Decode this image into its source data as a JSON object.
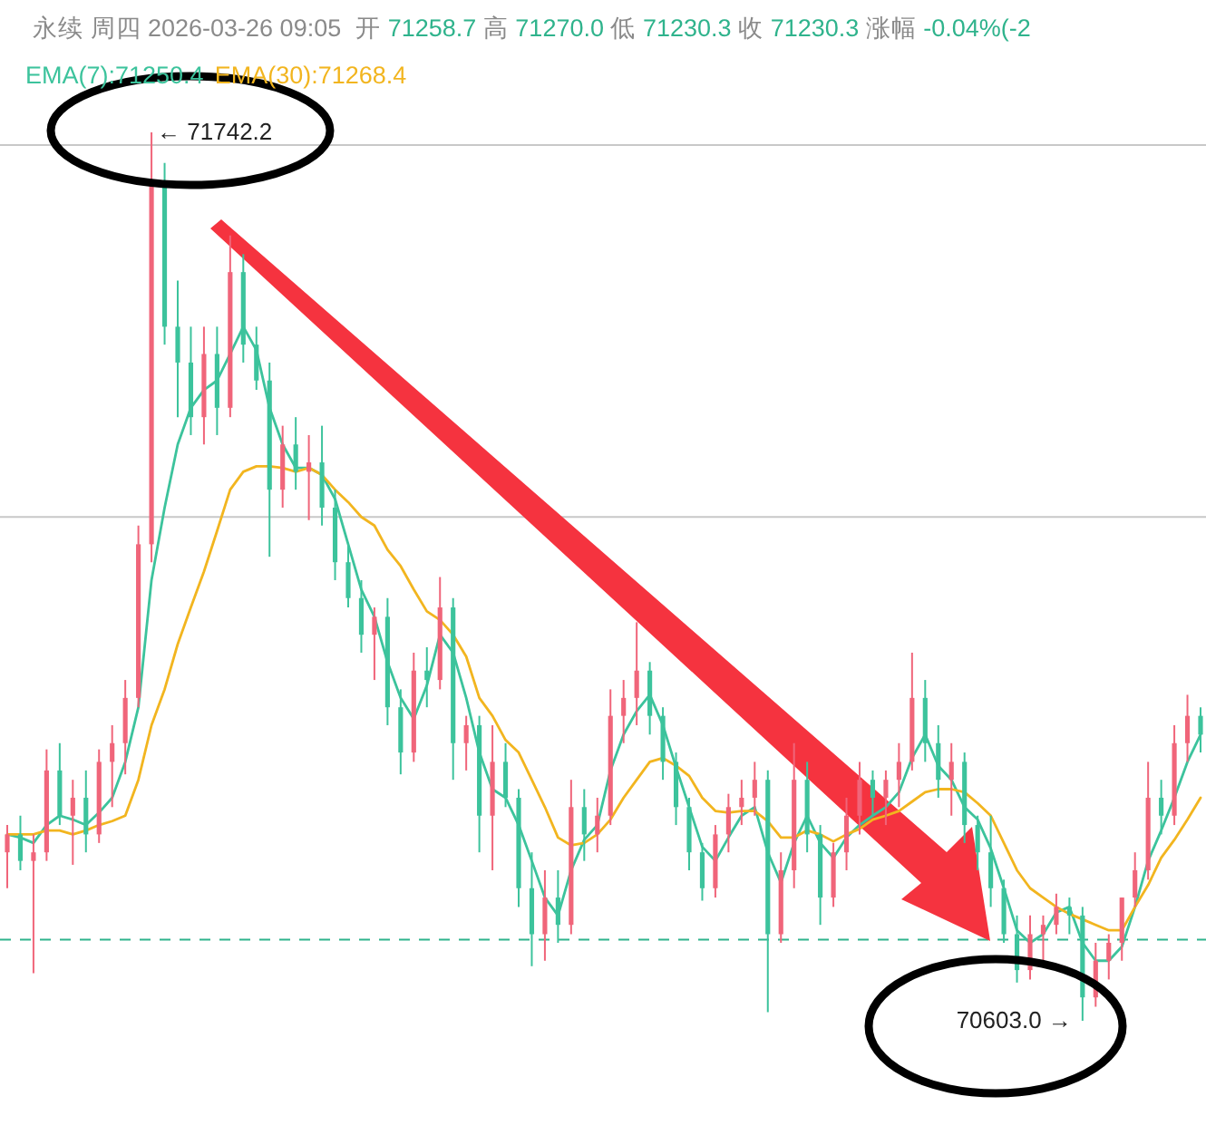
{
  "chart_data": {
    "type": "candlestick",
    "title": "永续 周四 2026-03-26 09:05",
    "subtitle": "开 71258.7 高 71270.0 低 71230.3 收 71230.3 涨幅 -0.04%(-2",
    "categories": [
      null,
      null,
      null,
      null,
      null,
      null,
      null,
      null,
      null,
      null,
      null,
      null,
      null,
      null,
      null,
      null,
      null,
      null,
      null,
      null,
      null,
      null,
      null,
      null,
      null,
      null,
      null,
      null,
      null,
      null,
      null,
      null,
      null,
      null,
      null,
      null,
      null,
      null,
      null,
      null,
      null,
      null,
      null,
      null,
      null,
      null,
      null,
      null,
      null,
      null,
      null,
      null,
      null,
      null,
      null,
      null,
      null,
      null,
      null,
      null,
      null,
      null,
      null,
      null,
      null,
      null,
      null,
      null,
      null,
      null,
      null,
      null,
      null,
      null,
      null,
      null,
      null,
      null,
      null,
      null,
      null,
      null,
      null,
      null,
      null,
      null,
      null,
      null,
      null,
      null,
      null,
      null
    ],
    "ohlc": [
      [
        70819,
        70854,
        70773,
        70842
      ],
      [
        70842,
        70866,
        70796,
        70808
      ],
      [
        70808,
        70842,
        70664,
        70819
      ],
      [
        70819,
        70951,
        70808,
        70924
      ],
      [
        70924,
        70959,
        70854,
        70866
      ],
      [
        70866,
        70912,
        70803,
        70889
      ],
      [
        70889,
        70924,
        70819,
        70842
      ],
      [
        70842,
        70951,
        70831,
        70935
      ],
      [
        70935,
        70982,
        70877,
        70959
      ],
      [
        70959,
        71040,
        70919,
        71017
      ],
      [
        71017,
        71238,
        71005,
        71214
      ],
      [
        71214,
        71742.2,
        71191,
        71679
      ],
      [
        71679,
        71703,
        71470,
        71493
      ],
      [
        71493,
        71552,
        71377,
        71447
      ],
      [
        71447,
        71493,
        71354,
        71377
      ],
      [
        71377,
        71493,
        71342,
        71458
      ],
      [
        71458,
        71493,
        71354,
        71389
      ],
      [
        71389,
        71610,
        71377,
        71563
      ],
      [
        71563,
        71586,
        71447,
        71470
      ],
      [
        71470,
        71493,
        71412,
        71424
      ],
      [
        71424,
        71447,
        71198,
        71284
      ],
      [
        71284,
        71366,
        71261,
        71342
      ],
      [
        71342,
        71377,
        71284,
        71307
      ],
      [
        71307,
        71354,
        71245,
        71319
      ],
      [
        71319,
        71366,
        71238,
        71261
      ],
      [
        71261,
        71284,
        71168,
        71191
      ],
      [
        71191,
        71214,
        71133,
        71145
      ],
      [
        71145,
        71168,
        71075,
        71098
      ],
      [
        71098,
        71133,
        71040,
        71121
      ],
      [
        71121,
        71145,
        70982,
        71005
      ],
      [
        71005,
        71028,
        70919,
        70947
      ],
      [
        70947,
        71075,
        70935,
        71052
      ],
      [
        71052,
        71082,
        71005,
        71040
      ],
      [
        71040,
        71172,
        71028,
        71133
      ],
      [
        71133,
        71145,
        70912,
        70959
      ],
      [
        70959,
        70994,
        70924,
        70982
      ],
      [
        70982,
        70994,
        70819,
        70866
      ],
      [
        70866,
        70982,
        70796,
        70935
      ],
      [
        70935,
        70959,
        70877,
        70889
      ],
      [
        70889,
        70900,
        70749,
        70773
      ],
      [
        70773,
        70819,
        70673,
        70714
      ],
      [
        70714,
        70796,
        70680,
        70761
      ],
      [
        70761,
        70796,
        70703,
        70726
      ],
      [
        70726,
        70912,
        70714,
        70877
      ],
      [
        70877,
        70900,
        70808,
        70842
      ],
      [
        70842,
        70889,
        70819,
        70866
      ],
      [
        70866,
        71028,
        70854,
        70994
      ],
      [
        70994,
        71040,
        70959,
        71017
      ],
      [
        71017,
        71114,
        70982,
        71052
      ],
      [
        71052,
        71063,
        70970,
        70994
      ],
      [
        70994,
        71005,
        70912,
        70935
      ],
      [
        70935,
        70947,
        70854,
        70877
      ],
      [
        70877,
        70889,
        70796,
        70819
      ],
      [
        70819,
        70831,
        70757,
        70773
      ],
      [
        70773,
        70854,
        70761,
        70842
      ],
      [
        70842,
        70894,
        70819,
        70877
      ],
      [
        70877,
        70912,
        70854,
        70889
      ],
      [
        70889,
        70935,
        70866,
        70912
      ],
      [
        70912,
        70924,
        70614,
        70714
      ],
      [
        70714,
        70819,
        70703,
        70796
      ],
      [
        70796,
        70959,
        70773,
        70912
      ],
      [
        70912,
        70935,
        70819,
        70842
      ],
      [
        70842,
        70854,
        70726,
        70761
      ],
      [
        70761,
        70831,
        70749,
        70819
      ],
      [
        70819,
        70889,
        70796,
        70866
      ],
      [
        70866,
        70935,
        70842,
        70912
      ],
      [
        70912,
        70924,
        70866,
        70889
      ],
      [
        70889,
        70924,
        70854,
        70912
      ],
      [
        70912,
        70959,
        70877,
        70935
      ],
      [
        70935,
        71075,
        70924,
        71017
      ],
      [
        71017,
        71040,
        70935,
        70959
      ],
      [
        70959,
        70982,
        70889,
        70912
      ],
      [
        70912,
        70959,
        70866,
        70935
      ],
      [
        70935,
        70947,
        70831,
        70854
      ],
      [
        70854,
        70866,
        70796,
        70819
      ],
      [
        70819,
        70866,
        70749,
        70773
      ],
      [
        70773,
        70784,
        70703,
        70714
      ],
      [
        70714,
        70738,
        70652,
        70668
      ],
      [
        70668,
        70738,
        70656,
        70714
      ],
      [
        70714,
        70738,
        70680,
        70726
      ],
      [
        70726,
        70766,
        70714,
        70749
      ],
      [
        70749,
        70761,
        70714,
        70738
      ],
      [
        70738,
        70749,
        70603.0,
        70633
      ],
      [
        70633,
        70703,
        70621,
        70680
      ],
      [
        70680,
        70714,
        70656,
        70703
      ],
      [
        70703,
        70761,
        70680,
        70761
      ],
      [
        70761,
        70819,
        70749,
        70796
      ],
      [
        70796,
        70935,
        70784,
        70889
      ],
      [
        70889,
        70912,
        70842,
        70866
      ],
      [
        70866,
        70982,
        70854,
        70959
      ],
      [
        70959,
        71021,
        70935,
        70994
      ],
      [
        70994,
        71005,
        70947,
        70970
      ]
    ],
    "series": [
      {
        "type": "line",
        "name": "EMA(7):71250.4",
        "color": "#3cc39c",
        "values": [
          70842,
          70838,
          70831,
          70854,
          70866,
          70861,
          70854,
          70870,
          70889,
          70935,
          71005,
          71168,
          71261,
          71342,
          71389,
          71412,
          71424,
          71458,
          71493,
          71463,
          71389,
          71342,
          71312,
          71312,
          71303,
          71272,
          71214,
          71156,
          71121,
          71063,
          71017,
          70990,
          71033,
          71098,
          71075,
          71017,
          70947,
          70900,
          70889,
          70854,
          70808,
          70761,
          70738,
          70796,
          70835,
          70854,
          70924,
          70970,
          71000,
          71021,
          70982,
          70928,
          70877,
          70826,
          70808,
          70838,
          70866,
          70877,
          70819,
          70780,
          70831,
          70866,
          70831,
          70812,
          70838,
          70854,
          70866,
          70877,
          70896,
          70940,
          70970,
          70930,
          70912,
          70877,
          70861,
          70824,
          70773,
          70719,
          70703,
          70714,
          70742,
          70749,
          70703,
          70680,
          70680,
          70698,
          70749,
          70808,
          70847,
          70889,
          70935,
          70970
        ]
      },
      {
        "type": "line",
        "name": "EMA(30):71268.4",
        "color": "#f2b51f",
        "values": [
          70842,
          70842,
          70842,
          70847,
          70847,
          70842,
          70847,
          70854,
          70859,
          70866,
          70912,
          70982,
          71028,
          71086,
          71133,
          71179,
          71231,
          71284,
          71307,
          71314,
          71314,
          71312,
          71307,
          71312,
          71303,
          71284,
          71268,
          71249,
          71238,
          71207,
          71186,
          71156,
          71128,
          71117,
          71098,
          71070,
          71017,
          70994,
          70963,
          70947,
          70912,
          70877,
          70838,
          70828,
          70831,
          70842,
          70861,
          70889,
          70912,
          70935,
          70940,
          70930,
          70917,
          70889,
          70872,
          70870,
          70872,
          70872,
          70859,
          70838,
          70838,
          70847,
          70842,
          70833,
          70842,
          70849,
          70861,
          70866,
          70872,
          70884,
          70896,
          70900,
          70900,
          70896,
          70882,
          70866,
          70831,
          70796,
          70773,
          70761,
          70749,
          70740,
          70733,
          70726,
          70719,
          70719,
          70749,
          70777,
          70812,
          70835,
          70861,
          70889
        ]
      }
    ],
    "yticks": [
      {
        "value": 71726,
        "label": null
      },
      {
        "value": 71249,
        "label": null
      }
    ],
    "grid": "y",
    "legend": "top left",
    "ref_lines": [
      {
        "axis": "y",
        "value": 70707,
        "color": "#2fb38c",
        "line_style": "dashed"
      }
    ],
    "annotations": [
      "← 71742.2",
      "70603.0 →"
    ]
  }
}
